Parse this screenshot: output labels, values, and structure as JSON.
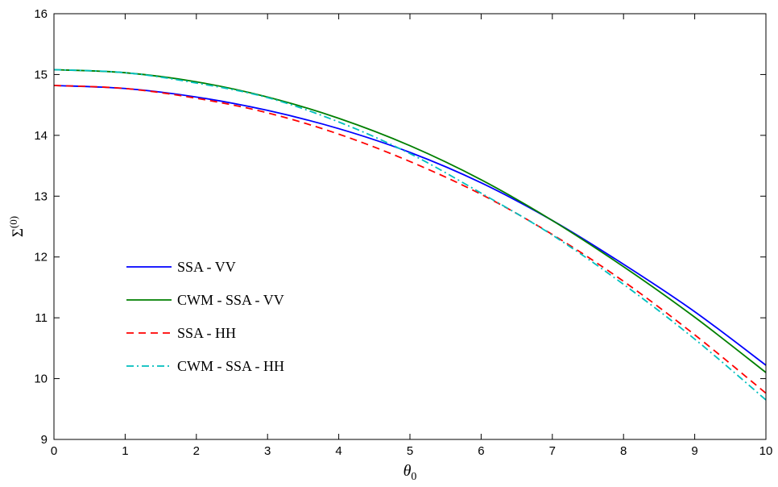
{
  "chart_data": {
    "type": "line",
    "title": "",
    "xlabel": "θ",
    "xlabel_sub": "0",
    "ylabel": "Σ",
    "ylabel_sup": "(0)",
    "xlim": [
      0,
      10
    ],
    "ylim": [
      9,
      16
    ],
    "xticks": [
      0,
      1,
      2,
      3,
      4,
      5,
      6,
      7,
      8,
      9,
      10
    ],
    "yticks": [
      9,
      10,
      11,
      12,
      13,
      14,
      15,
      16
    ],
    "grid": false,
    "legend_position": "center-left",
    "x": [
      0,
      1,
      2,
      3,
      4,
      5,
      6,
      7,
      8,
      9,
      10
    ],
    "series": [
      {
        "name": "SSA - VV",
        "color": "#0000ff",
        "dash": "solid",
        "values": [
          14.82,
          14.77,
          14.63,
          14.41,
          14.11,
          13.72,
          13.22,
          12.6,
          11.88,
          11.1,
          10.22
        ]
      },
      {
        "name": "CWM - SSA - VV",
        "color": "#007f00",
        "dash": "solid",
        "values": [
          15.08,
          15.03,
          14.88,
          14.63,
          14.28,
          13.83,
          13.27,
          12.6,
          11.84,
          11.01,
          10.1
        ]
      },
      {
        "name": "SSA - HH",
        "color": "#ff0000",
        "dash": "dashed",
        "values": [
          14.82,
          14.77,
          14.61,
          14.37,
          14.02,
          13.57,
          13.03,
          12.37,
          11.6,
          10.72,
          9.76
        ]
      },
      {
        "name": "CWM - SSA - HH",
        "color": "#00bfbf",
        "dash": "dashdot",
        "values": [
          15.08,
          15.03,
          14.86,
          14.62,
          14.22,
          13.7,
          13.05,
          12.36,
          11.55,
          10.65,
          9.65
        ]
      }
    ]
  }
}
